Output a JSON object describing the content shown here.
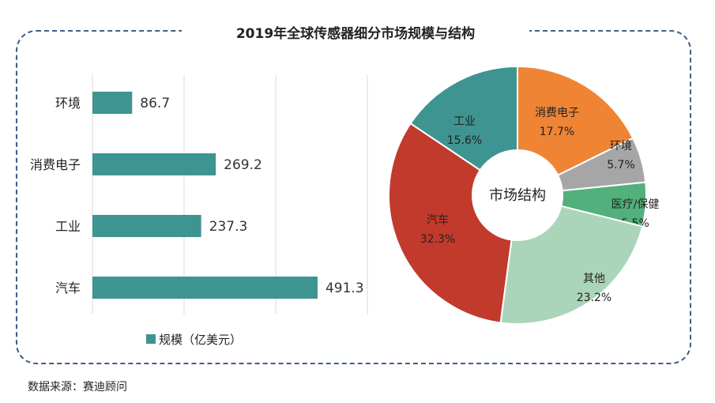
{
  "title": "2019年全球传感器细分市场规模与结构",
  "source": "数据来源：赛迪顾问",
  "chart_data": [
    {
      "type": "bar",
      "orientation": "horizontal",
      "categories": [
        "环境",
        "消费电子",
        "工业",
        "汽车"
      ],
      "series": [
        {
          "name": "规模（亿美元）",
          "values": [
            86.7,
            269.2,
            237.3,
            491.3
          ]
        }
      ],
      "xlim": [
        0,
        600
      ],
      "grid": true,
      "legend": "bottom-left",
      "color": "#3e9491"
    },
    {
      "type": "pie",
      "style": "donut",
      "center_label": "市场结构",
      "slices": [
        {
          "label": "消费电子",
          "value": 17.7,
          "display": "17.7%",
          "color": "#ee8434"
        },
        {
          "label": "环境",
          "value": 5.7,
          "display": "5.7%",
          "color": "#a6a6a6"
        },
        {
          "label": "医疗/保健",
          "value": 5.5,
          "display": "5.5%",
          "color": "#52b07c"
        },
        {
          "label": "其他",
          "value": 23.2,
          "display": "23.2%",
          "color": "#abd5bb"
        },
        {
          "label": "汽车",
          "value": 32.3,
          "display": "32.3%",
          "color": "#c13a2c"
        },
        {
          "label": "工业",
          "value": 15.6,
          "display": "15.6%",
          "color": "#3e9491"
        }
      ]
    }
  ]
}
